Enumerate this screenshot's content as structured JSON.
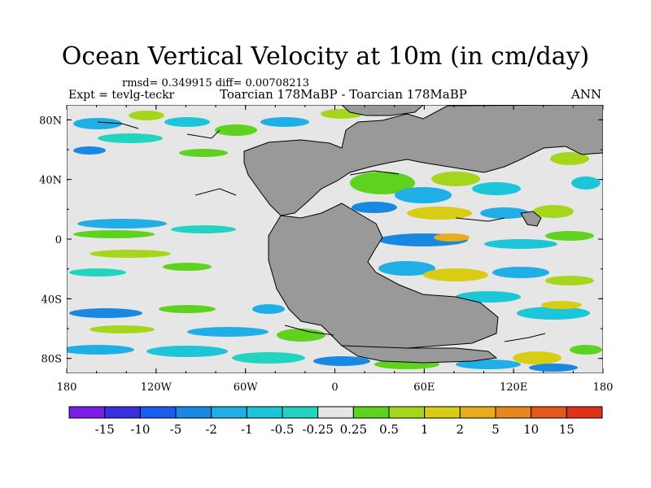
{
  "figure": {
    "title": "Ocean Vertical Velocity at 10m (in cm/day)",
    "stats": "rmsd= 0.349915 diff= 0.00708213",
    "left_label": "Expt = tevlg-teckr",
    "center_label": "Toarcian 178MaBP - Toarcian 178MaBP",
    "right_label": "ANN"
  },
  "axes": {
    "lat_ticks": [
      {
        "value": 80,
        "label": "80N"
      },
      {
        "value": 40,
        "label": "40N"
      },
      {
        "value": 0,
        "label": "0"
      },
      {
        "value": -40,
        "label": "40S"
      },
      {
        "value": -80,
        "label": "80S"
      }
    ],
    "lon_ticks": [
      {
        "value": -180,
        "label": "180"
      },
      {
        "value": -120,
        "label": "120W"
      },
      {
        "value": -60,
        "label": "60W"
      },
      {
        "value": 0,
        "label": "0"
      },
      {
        "value": 60,
        "label": "60E"
      },
      {
        "value": 120,
        "label": "120E"
      },
      {
        "value": 180,
        "label": "180"
      }
    ],
    "lat_range": [
      -90,
      90
    ],
    "lon_range": [
      -180,
      180
    ]
  },
  "colorbar": {
    "colors": [
      "#7a1ee6",
      "#3a2ee0",
      "#1a5cf0",
      "#1888e0",
      "#20aee6",
      "#1cc6d8",
      "#22d4c0",
      "#e6e6e6",
      "#5ed21e",
      "#a6d61c",
      "#d8cc14",
      "#e6ae1a",
      "#e6861c",
      "#e4581a",
      "#e0321a"
    ],
    "labels": [
      "-15",
      "-10",
      "-5",
      "-2",
      "-1",
      "-0.5",
      "-0.25",
      "0.25",
      "0.5",
      "1",
      "2",
      "5",
      "10",
      "15"
    ]
  },
  "legend_colors": {
    "land": "#999999",
    "ocean_neutral": "#e6e6e6"
  }
}
